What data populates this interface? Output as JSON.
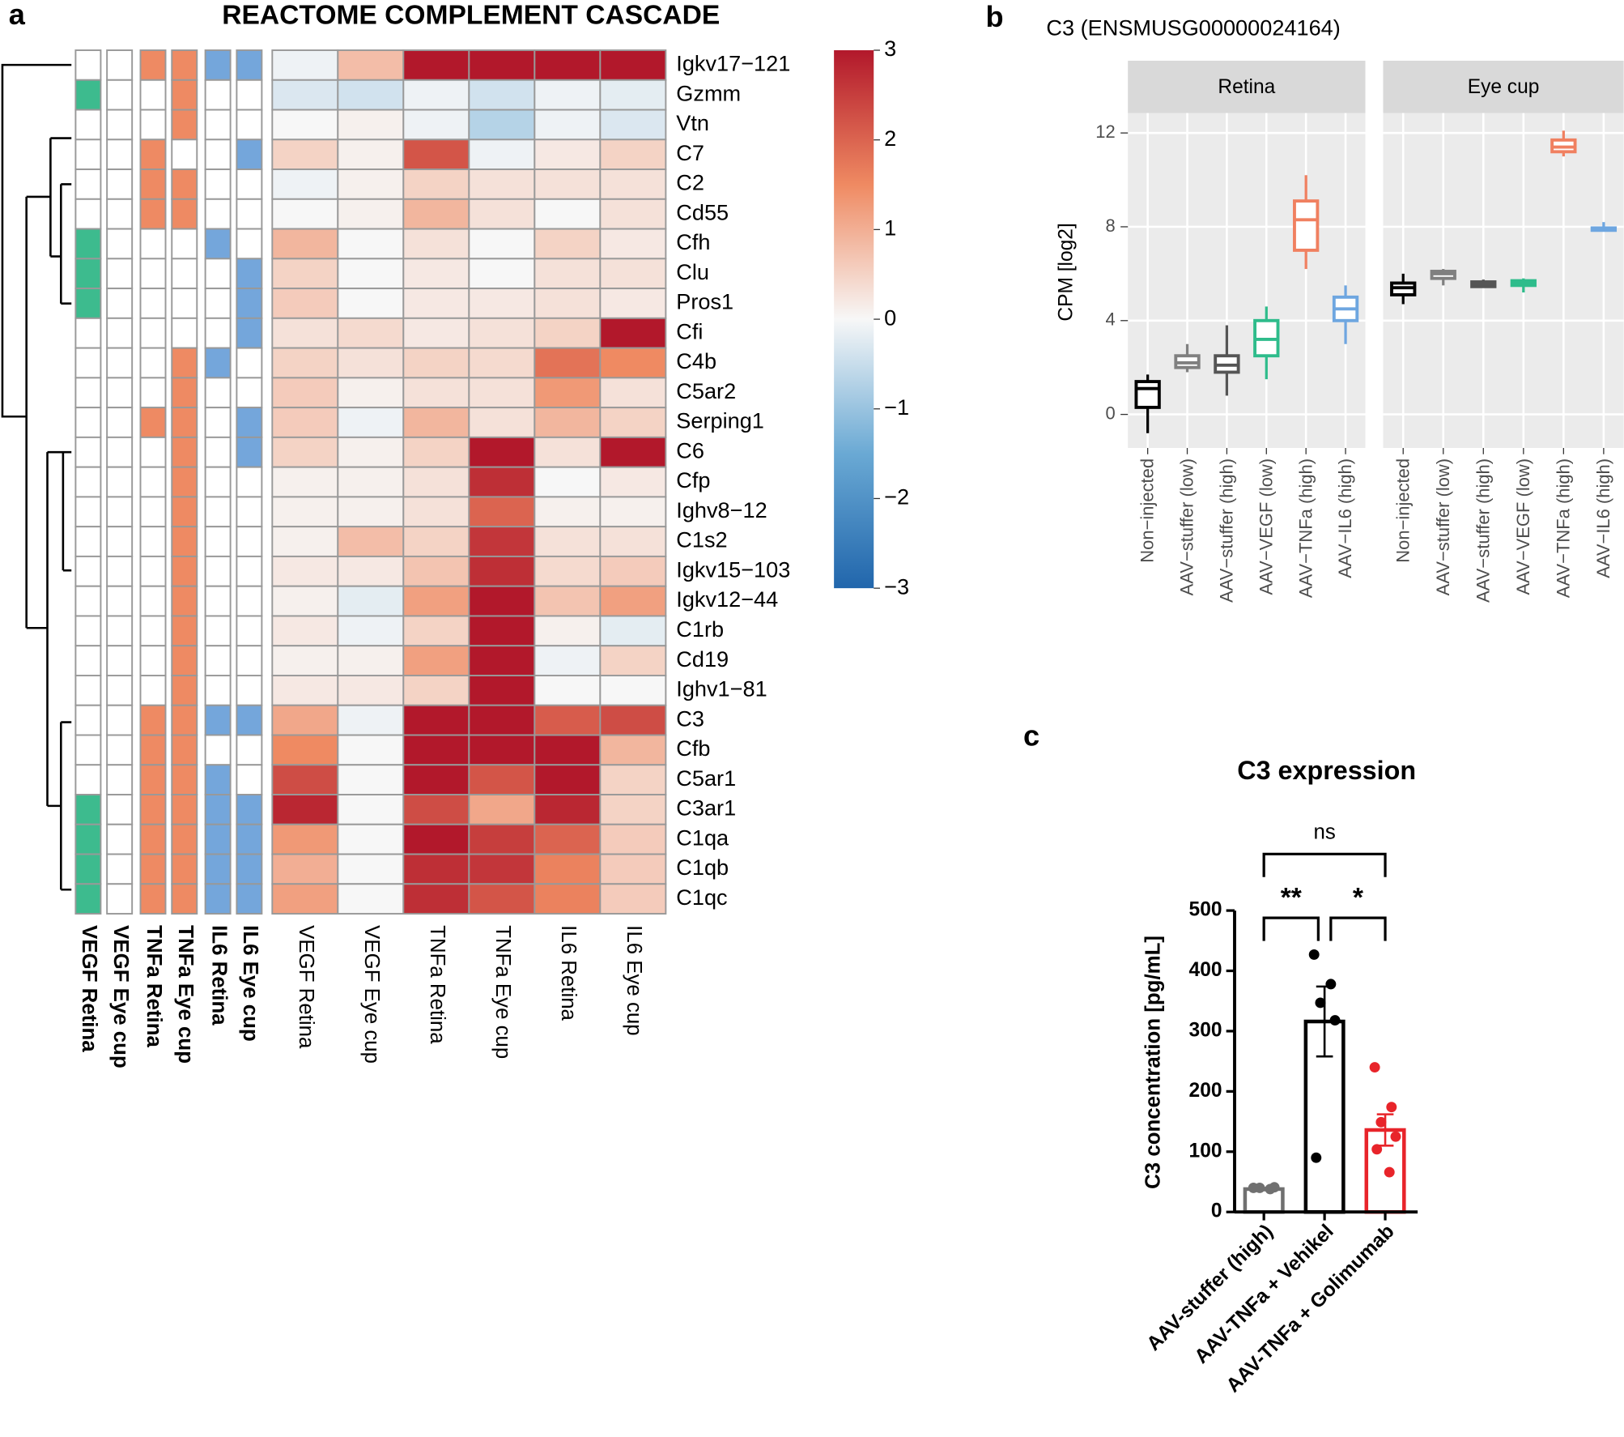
{
  "chart_data": [
    {
      "type": "heatmap",
      "panel": "a",
      "title": "REACTOME COMPLEMENT CASCADE",
      "rows": [
        "Igkv17−121",
        "Gzmm",
        "Vtn",
        "C7",
        "C2",
        "Cd55",
        "Cfh",
        "Clu",
        "Pros1",
        "Cfi",
        "C4b",
        "C5ar2",
        "Serping1",
        "C6",
        "Cfp",
        "Ighv8−12",
        "C1s2",
        "Igkv15−103",
        "Igkv12−44",
        "C1rb",
        "Cd19",
        "Ighv1−81",
        "C3",
        "Cfb",
        "C5ar1",
        "C3ar1",
        "C1qa",
        "C1qb",
        "C1qc"
      ],
      "columns": [
        "VEGF Retina",
        "VEGF Eye cup",
        "TNFa Retina",
        "TNFa Eye cup",
        "IL6 Retina",
        "IL6 Eye cup"
      ],
      "values": [
        [
          -0.1,
          0.8,
          3,
          3,
          3,
          3
        ],
        [
          -0.3,
          -0.4,
          -0.1,
          -0.4,
          -0.1,
          -0.2
        ],
        [
          0,
          0.1,
          -0.1,
          -0.7,
          -0.1,
          -0.3
        ],
        [
          0.5,
          0.1,
          2.2,
          -0.1,
          0.2,
          0.5
        ],
        [
          -0.1,
          0.1,
          0.5,
          0.3,
          0.3,
          0.3
        ],
        [
          0,
          0.1,
          0.9,
          0.3,
          0,
          0.3
        ],
        [
          0.9,
          0,
          0.3,
          0,
          0.5,
          0.2
        ],
        [
          0.5,
          0,
          0.2,
          0,
          0.3,
          0.3
        ],
        [
          0.6,
          0,
          0.2,
          0.2,
          0.3,
          0.2
        ],
        [
          0.3,
          0.4,
          0.2,
          0.3,
          0.5,
          3
        ],
        [
          0.5,
          0.3,
          0.5,
          0.4,
          1.8,
          1.5
        ],
        [
          0.6,
          0.1,
          0.3,
          0.3,
          1.3,
          0.3
        ],
        [
          0.6,
          -0.1,
          0.9,
          0.3,
          0.9,
          0.5
        ],
        [
          0.5,
          0.1,
          0.5,
          3,
          0.3,
          3
        ],
        [
          0.1,
          0.1,
          0.3,
          2.7,
          0,
          0.2
        ],
        [
          0.1,
          0.1,
          0.3,
          2,
          0.1,
          0.1
        ],
        [
          0.1,
          0.8,
          0.5,
          2.6,
          0.3,
          0.3
        ],
        [
          0.2,
          0.2,
          0.7,
          2.7,
          0.4,
          0.6
        ],
        [
          0.1,
          -0.2,
          1.2,
          3,
          0.7,
          1.2
        ],
        [
          0.2,
          -0.1,
          0.5,
          3,
          0.1,
          -0.2
        ],
        [
          0.1,
          0.1,
          1.2,
          3,
          -0.1,
          0.5
        ],
        [
          0.2,
          0.2,
          0.5,
          3,
          0,
          0
        ],
        [
          1.1,
          -0.1,
          3,
          3,
          2.1,
          2.3
        ],
        [
          1.5,
          0,
          3,
          3,
          3,
          0.9
        ],
        [
          2.3,
          0,
          3,
          2.2,
          3,
          0.5
        ],
        [
          2.8,
          0,
          2.3,
          1.1,
          2.8,
          0.5
        ],
        [
          1.3,
          0,
          3,
          2.5,
          2,
          0.6
        ],
        [
          1,
          0,
          2.7,
          2.6,
          1.6,
          0.6
        ],
        [
          1.2,
          0,
          2.7,
          2.2,
          1.6,
          0.6
        ]
      ],
      "zlim": [
        -3,
        3
      ],
      "zticks": [
        3,
        2,
        1,
        0,
        {
          "value": -1,
          "label": "−1"
        },
        {
          "value": -2,
          "label": "−2"
        },
        {
          "value": -3,
          "label": "−3"
        }
      ],
      "colors": [
        "#2166ac",
        "#6aa9d4",
        "#f7f7f7",
        "#ef8a62",
        "#b2182b"
      ],
      "annotations": [
        {
          "name": "VEGF Retina",
          "color": "#3dbb8e",
          "values": [
            0,
            1,
            0,
            0,
            0,
            0,
            1,
            1,
            1,
            0,
            0,
            0,
            0,
            0,
            0,
            0,
            0,
            0,
            0,
            0,
            0,
            0,
            0,
            0,
            0,
            1,
            1,
            1,
            1
          ]
        },
        {
          "name": "VEGF Eye cup",
          "color": "#3dbb8e",
          "values": [
            0,
            0,
            0,
            0,
            0,
            0,
            0,
            0,
            0,
            0,
            0,
            0,
            0,
            0,
            0,
            0,
            0,
            0,
            0,
            0,
            0,
            0,
            0,
            0,
            0,
            0,
            0,
            0,
            0
          ]
        },
        {
          "name": "TNFa Retina",
          "color": "#ee8a63",
          "values": [
            1,
            0,
            0,
            1,
            1,
            1,
            0,
            0,
            0,
            0,
            0,
            0,
            1,
            0,
            0,
            0,
            0,
            0,
            0,
            0,
            0,
            0,
            1,
            1,
            1,
            1,
            1,
            1,
            1
          ]
        },
        {
          "name": "TNFa Eye cup",
          "color": "#ee8a63",
          "values": [
            1,
            1,
            1,
            0,
            1,
            1,
            0,
            0,
            0,
            0,
            1,
            1,
            1,
            1,
            1,
            1,
            1,
            1,
            1,
            1,
            1,
            1,
            1,
            1,
            1,
            1,
            1,
            1,
            1
          ]
        },
        {
          "name": "IL6 Retina",
          "color": "#74a6db",
          "values": [
            1,
            0,
            0,
            0,
            0,
            0,
            1,
            0,
            0,
            0,
            1,
            0,
            0,
            0,
            0,
            0,
            0,
            0,
            0,
            0,
            0,
            0,
            1,
            0,
            1,
            1,
            1,
            1,
            1
          ]
        },
        {
          "name": "IL6 Eye cup",
          "color": "#74a6db",
          "values": [
            1,
            0,
            0,
            1,
            0,
            0,
            0,
            1,
            1,
            1,
            0,
            0,
            1,
            1,
            0,
            0,
            0,
            0,
            0,
            0,
            0,
            0,
            1,
            0,
            0,
            1,
            1,
            1,
            1
          ]
        }
      ]
    },
    {
      "type": "box",
      "panel": "b",
      "title": "C3 (ENSMUSG00000024164)",
      "ylabel": "CPM [log2]",
      "categories": [
        "Non−injected",
        "AAV−stuffer (low)",
        "AAV−stuffer (high)",
        "AAV−VEGF (low)",
        "AAV−TNFa (high)",
        "AAV−IL6 (high)"
      ],
      "colors": [
        "#000000",
        "#808080",
        "#555555",
        "#2ebc8b",
        "#f08060",
        "#6ea6e0"
      ],
      "facets": [
        {
          "name": "Retina",
          "boxes": [
            {
              "min": -0.8,
              "q1": 0.3,
              "median": 1.1,
              "q3": 1.4,
              "max": 1.7
            },
            {
              "min": 1.8,
              "q1": 2.0,
              "median": 2.2,
              "q3": 2.5,
              "max": 3.0
            },
            {
              "min": 0.8,
              "q1": 1.8,
              "median": 2.1,
              "q3": 2.5,
              "max": 3.8
            },
            {
              "min": 1.5,
              "q1": 2.5,
              "median": 3.2,
              "q3": 4.0,
              "max": 4.6
            },
            {
              "min": 6.2,
              "q1": 7.0,
              "median": 8.3,
              "q3": 9.1,
              "max": 10.2
            },
            {
              "min": 3.0,
              "q1": 4.0,
              "median": 4.5,
              "q3": 5.0,
              "max": 5.5
            }
          ]
        },
        {
          "name": "Eye cup",
          "boxes": [
            {
              "min": 4.7,
              "q1": 5.1,
              "median": 5.4,
              "q3": 5.6,
              "max": 6.0
            },
            {
              "min": 5.5,
              "q1": 5.8,
              "median": 6.0,
              "q3": 6.1,
              "max": 6.2
            },
            {
              "min": 5.4,
              "q1": 5.45,
              "median": 5.55,
              "q3": 5.65,
              "max": 5.75
            },
            {
              "min": 5.2,
              "q1": 5.5,
              "median": 5.6,
              "q3": 5.7,
              "max": 5.8
            },
            {
              "min": 11.0,
              "q1": 11.2,
              "median": 11.4,
              "q3": 11.7,
              "max": 12.1
            },
            {
              "min": 7.8,
              "q1": 7.85,
              "median": 7.9,
              "q3": 7.95,
              "max": 8.2
            }
          ]
        }
      ],
      "ylim": [
        -1.43,
        12.85
      ],
      "yticks": [
        0,
        4,
        8,
        12
      ],
      "grid": true
    },
    {
      "type": "bar",
      "panel": "c",
      "title": "C3 expression",
      "ylabel": "C3 concentration [pg/mL]",
      "categories": [
        "AAV-stuffer (high)",
        "AAV-TNFa + Vehikel",
        "AAV-TNFa + Golimumab"
      ],
      "values": [
        38,
        316,
        136
      ],
      "errors": [
        2,
        58,
        26
      ],
      "points": [
        [
          40,
          38,
          40,
          41
        ],
        [
          427,
          378,
          347,
          318,
          90
        ],
        [
          240,
          174,
          149,
          125,
          104,
          66
        ]
      ],
      "colors": [
        "#707070",
        "#000000",
        "#e8242a"
      ],
      "ylim": [
        0,
        500
      ],
      "yticks": [
        0,
        100,
        200,
        300,
        400,
        500
      ],
      "significance": [
        {
          "from": 0,
          "to": 2,
          "label": "ns"
        },
        {
          "from": 0,
          "to": 1,
          "label": "**"
        },
        {
          "from": 1,
          "to": 2,
          "label": "*"
        }
      ]
    }
  ]
}
